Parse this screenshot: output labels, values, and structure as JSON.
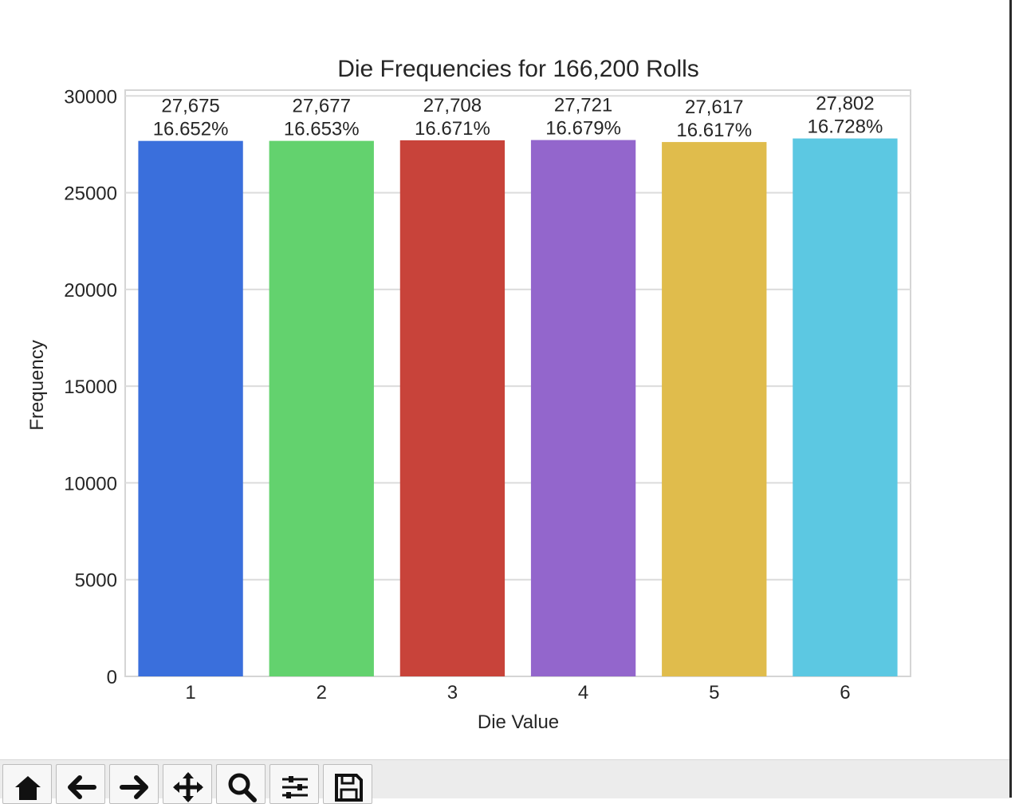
{
  "chart_data": {
    "type": "bar",
    "title": "Die Frequencies for 166,200 Rolls",
    "xlabel": "Die Value",
    "ylabel": "Frequency",
    "categories": [
      "1",
      "2",
      "3",
      "4",
      "5",
      "6"
    ],
    "values": [
      27675,
      27677,
      27708,
      27721,
      27617,
      27802
    ],
    "value_labels": [
      "27,675",
      "27,677",
      "27,708",
      "27,721",
      "27,617",
      "27,802"
    ],
    "percent_labels": [
      "16.652%",
      "16.653%",
      "16.671%",
      "16.679%",
      "16.617%",
      "16.728%"
    ],
    "colors": [
      "#3a6fdc",
      "#63d26e",
      "#c8433a",
      "#9366cc",
      "#e0bc4c",
      "#5cc8e2"
    ],
    "ylim": [
      0,
      30300
    ],
    "yticks": [
      0,
      5000,
      10000,
      15000,
      20000,
      25000,
      30000
    ],
    "ytick_labels": [
      "0",
      "5000",
      "10000",
      "15000",
      "20000",
      "25000",
      "30000"
    ],
    "grid": true
  },
  "toolbar": {
    "buttons": [
      {
        "name": "home-button",
        "icon": "home-icon"
      },
      {
        "name": "back-button",
        "icon": "arrow-left-icon"
      },
      {
        "name": "forward-button",
        "icon": "arrow-right-icon"
      },
      {
        "name": "pan-button",
        "icon": "move-icon"
      },
      {
        "name": "zoom-button",
        "icon": "magnifier-icon"
      },
      {
        "name": "configure-subplots-button",
        "icon": "sliders-icon"
      },
      {
        "name": "save-button",
        "icon": "floppy-disk-icon"
      }
    ]
  }
}
